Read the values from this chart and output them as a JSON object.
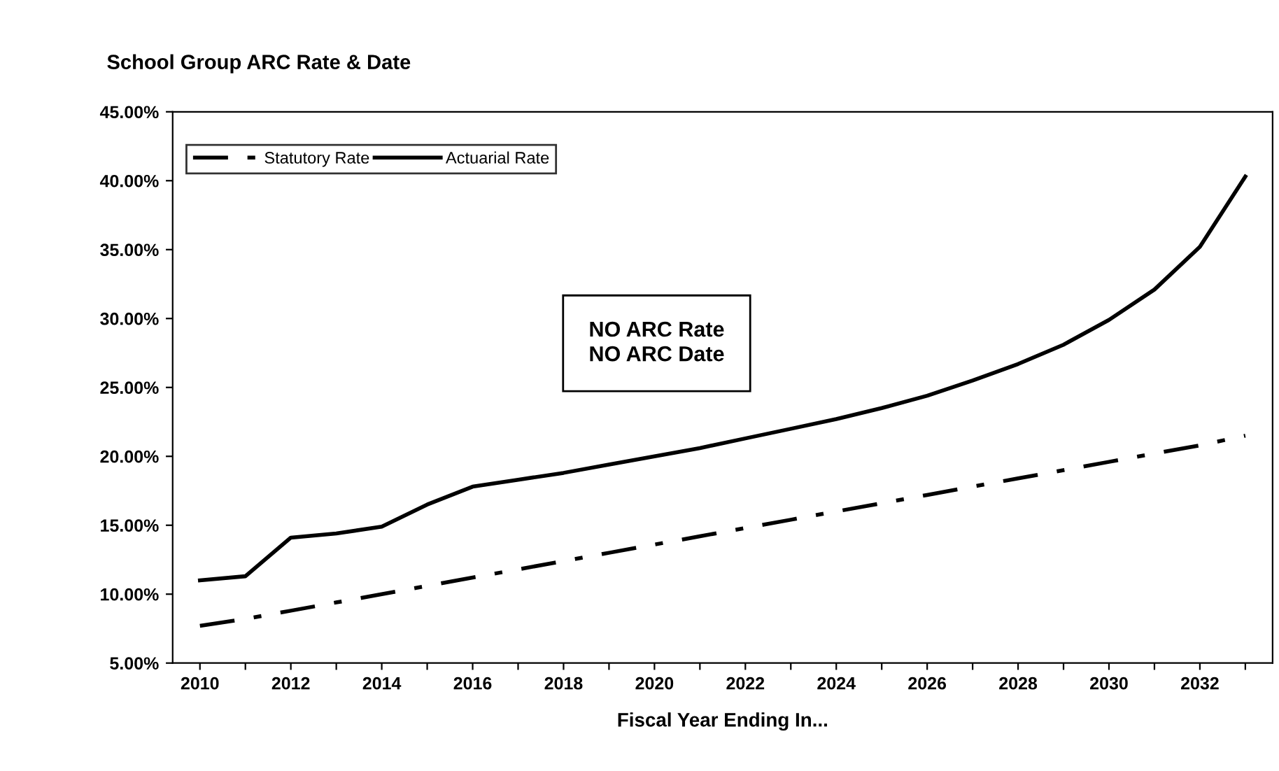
{
  "chart_data": {
    "type": "line",
    "title": "School Group ARC Rate & Date",
    "xlabel": "Fiscal Year Ending In...",
    "categories": [
      "2010",
      null,
      "2012",
      null,
      "2014",
      null,
      "2016",
      null,
      "2018",
      null,
      "2020",
      null,
      "2022",
      null,
      "2024",
      null,
      "2026",
      null,
      "2028",
      null,
      "2030",
      null,
      "2032",
      null
    ],
    "series": [
      {
        "name": "Statutory Rate",
        "color": "#000000",
        "line_style": "dashed",
        "values": [
          7.7,
          8.2,
          8.8,
          9.4,
          10.0,
          10.6,
          11.2,
          11.8,
          12.4,
          13.0,
          13.6,
          14.2,
          14.8,
          15.4,
          16.0,
          16.6,
          17.2,
          17.8,
          18.4,
          19.0,
          19.6,
          20.2,
          20.8,
          21.5
        ]
      },
      {
        "name": "Actuarial Rate",
        "color": "#000000",
        "line_style": "solid",
        "values": [
          11.0,
          11.3,
          14.1,
          14.4,
          14.9,
          16.5,
          17.8,
          18.3,
          18.8,
          19.4,
          20.0,
          20.6,
          21.3,
          22.0,
          22.7,
          23.5,
          24.4,
          25.5,
          26.7,
          28.1,
          29.9,
          32.1,
          35.2,
          40.3
        ]
      }
    ],
    "ylim": [
      5,
      45
    ],
    "yticks": [
      {
        "value": 5,
        "label": "5.00%"
      },
      {
        "value": 10,
        "label": "10.00%"
      },
      {
        "value": 15,
        "label": "15.00%"
      },
      {
        "value": 20,
        "label": "20.00%"
      },
      {
        "value": 25,
        "label": "25.00%"
      },
      {
        "value": 30,
        "label": "30.00%"
      },
      {
        "value": 35,
        "label": "35.00%"
      },
      {
        "value": 40,
        "label": "40.00%"
      },
      {
        "value": 45,
        "label": "45.00%"
      }
    ],
    "grid": false,
    "legend": "top left",
    "marker": "none",
    "annotations": [
      "NO ARC Rate\nNO ARC Date"
    ]
  }
}
